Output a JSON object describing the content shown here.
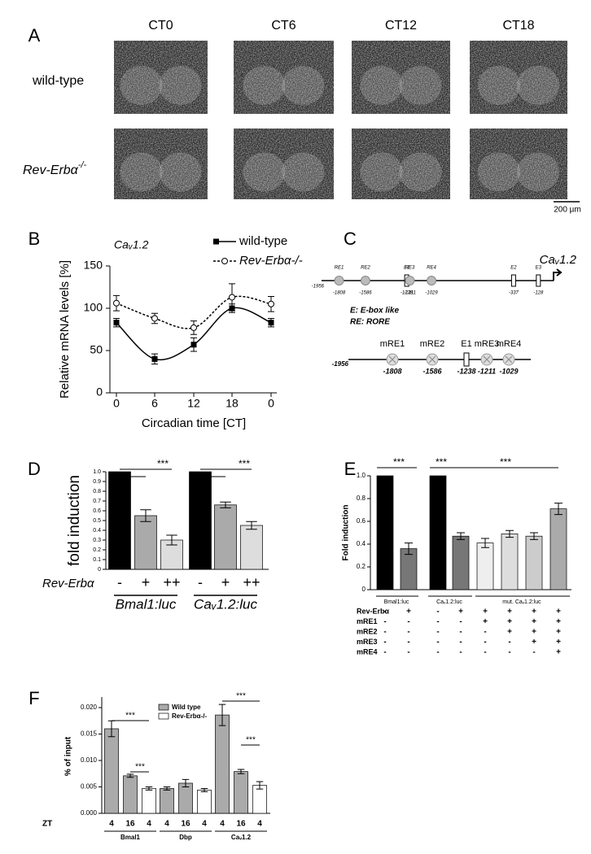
{
  "panel_labels": [
    "A",
    "B",
    "C",
    "D",
    "E",
    "F"
  ],
  "panel_a": {
    "columns": [
      "CT0",
      "CT6",
      "CT12",
      "CT18"
    ],
    "rows": [
      "wild-type",
      "Rev-Erbα"
    ],
    "row_superscript": "-/-",
    "scale_bar": "200 µm"
  },
  "panel_c": {
    "gene": "Caᵥ1.2",
    "start": "-1956",
    "elements": [
      {
        "label": "RE1",
        "position": "-1808"
      },
      {
        "label": "RE2",
        "position": "-1586"
      },
      {
        "label": "E1",
        "position": "-1238"
      },
      {
        "label": "RE3",
        "position": "-1211"
      },
      {
        "label": "RE4",
        "position": "-1029"
      },
      {
        "label": "E2",
        "position": "-337"
      },
      {
        "label": "E3",
        "position": "-128"
      }
    ],
    "legend": [
      "E: E-box like",
      "RE: RORE"
    ],
    "mutant_start": "-1956",
    "mutant_elements": [
      {
        "label": "mRE1",
        "position": "-1808"
      },
      {
        "label": "mRE2",
        "position": "-1586"
      },
      {
        "label": "E1",
        "position": "-1238"
      },
      {
        "label": "mRE3",
        "position": "-1211"
      },
      {
        "label": "mRE4",
        "position": "-1029"
      }
    ]
  },
  "chart_data": [
    {
      "type": "line",
      "title": "Caᵥ1.2",
      "categories": [
        "0",
        "6",
        "12",
        "18",
        "0"
      ],
      "xlabel": "Circadian time [CT]",
      "ylabel": "Relative mRNA levels [%]",
      "ylim": [
        0,
        150
      ],
      "yticks": [
        0,
        50,
        100,
        150
      ],
      "series": [
        {
          "name": "wild-type",
          "color": "#000000",
          "line_style": "solid",
          "marker": "filled-square",
          "values": [
            83,
            40,
            57,
            100,
            83
          ],
          "errors": [
            5,
            6,
            8,
            5,
            5
          ]
        },
        {
          "name": "Rev-Erbα-/-",
          "color": "#000000",
          "line_style": "dotted",
          "marker": "open-circle",
          "values": [
            106,
            88,
            77,
            113,
            105
          ],
          "errors": [
            9,
            6,
            8,
            16,
            9
          ]
        }
      ]
    },
    {
      "type": "bar",
      "ylabel": "fold induction",
      "category_label": "Rev-Erbα",
      "categories": [
        "-",
        "+",
        "++",
        "-",
        "+",
        "++"
      ],
      "groups": [
        "Bmal1:luc",
        "Caᵥ1.2:luc"
      ],
      "ylim": [
        0,
        1
      ],
      "yticks": [
        0,
        0.1,
        0.2,
        0.3,
        0.4,
        0.5,
        0.6,
        0.7,
        0.8,
        0.9,
        {
          "value": 1,
          "label": "1.0"
        }
      ],
      "values": [
        1,
        0.55,
        0.3,
        1,
        0.66,
        0.45
      ],
      "errors": [
        0,
        0.06,
        0.05,
        0,
        0.03,
        0.04
      ],
      "colors": [
        "#000000",
        "#aaaaaa",
        "#dddddd",
        "#000000",
        "#aaaaaa",
        "#dddddd"
      ],
      "annotations": [
        "***",
        "***"
      ]
    },
    {
      "type": "bar",
      "ylabel": "Fold induction",
      "groups": [
        "Bmal1:luc",
        "Caᵥ1.2:luc",
        "mut. Caᵥ1.2:luc"
      ],
      "ylim": [
        0,
        1
      ],
      "yticks": [
        0,
        0.2,
        0.4,
        0.6,
        0.8,
        {
          "value": 1,
          "label": "1.0"
        }
      ],
      "values": [
        1,
        0.36,
        1,
        0.47,
        0.41,
        0.49,
        0.47,
        0.71
      ],
      "errors": [
        0,
        0.05,
        0,
        0.03,
        0.04,
        0.03,
        0.03,
        0.05
      ],
      "colors": [
        "#000000",
        "#777777",
        "#000000",
        "#777777",
        "#eeeeee",
        "#dddddd",
        "#cccccc",
        "#aaaaaa"
      ],
      "conditions": [
        {
          "name": "Rev-Erbα",
          "marks": [
            "-",
            "+",
            "-",
            "+",
            "+",
            "+",
            "+",
            "+"
          ]
        },
        {
          "name": "mRE1",
          "marks": [
            "-",
            "-",
            "-",
            "-",
            "+",
            "+",
            "+",
            "+"
          ]
        },
        {
          "name": "mRE2",
          "marks": [
            "-",
            "-",
            "-",
            "-",
            "-",
            "+",
            "+",
            "+"
          ]
        },
        {
          "name": "mRE3",
          "marks": [
            "-",
            "-",
            "-",
            "-",
            "-",
            "-",
            "+",
            "+"
          ]
        },
        {
          "name": "mRE4",
          "marks": [
            "-",
            "-",
            "-",
            "-",
            "-",
            "-",
            "-",
            "+"
          ]
        }
      ],
      "annotations": [
        "***",
        "***",
        "***"
      ]
    },
    {
      "type": "grouped_bar",
      "ylabel": "% of input",
      "category_label": "ZT",
      "categories": [
        "4",
        "16",
        "4",
        "4",
        "16",
        "4",
        "4",
        "16",
        "4"
      ],
      "groups": [
        "Bmal1",
        "Dbp",
        "Caᵥ1.2"
      ],
      "ylim": [
        0,
        0.022
      ],
      "yticks": [
        {
          "value": 0,
          "label": "0.000"
        },
        {
          "value": 0.005,
          "label": "0.005"
        },
        {
          "value": 0.01,
          "label": "0.010"
        },
        {
          "value": 0.015,
          "label": "0.015"
        },
        {
          "value": 0.02,
          "label": "0.020"
        }
      ],
      "series": [
        {
          "name": "Wild type",
          "color": "#aaaaaa",
          "values": [
            0.016,
            0.0071,
            null,
            0.0047,
            0.0057,
            null,
            0.0186,
            0.0079,
            null
          ],
          "errors": [
            0.0015,
            0.0003,
            null,
            0.0003,
            0.0007,
            null,
            0.002,
            0.0004,
            null
          ]
        },
        {
          "name": "Rev-Erbα-/-",
          "color": "#ffffff",
          "values": [
            null,
            null,
            0.0047,
            null,
            null,
            0.0044,
            null,
            null,
            0.0053
          ],
          "errors": [
            null,
            null,
            0.0003,
            null,
            null,
            0.0003,
            null,
            null,
            0.0007
          ]
        }
      ],
      "annotations": [
        "***",
        "***",
        "***",
        "***"
      ]
    }
  ]
}
